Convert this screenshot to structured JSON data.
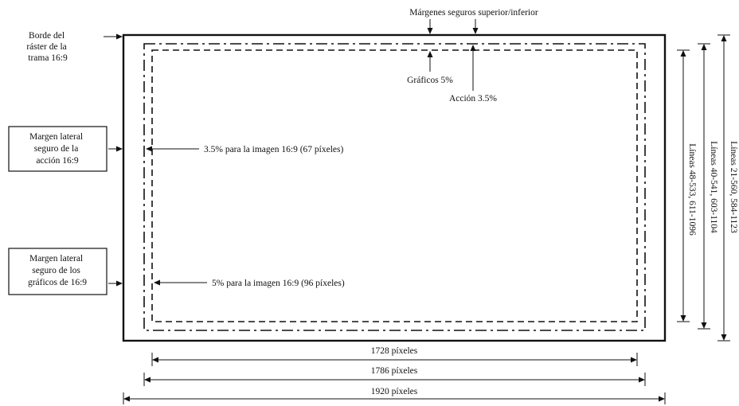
{
  "labels": {
    "top_margins": "Márgenes seguros superior/inferior",
    "raster_edge": [
      "Borde del",
      "ráster de la",
      "trama 16:9"
    ],
    "graphics": "Gráficos 5%",
    "action": "Acción 3.5%",
    "action_safe_box": [
      "Margen lateral",
      "seguro de la",
      "acción 16:9"
    ],
    "graphics_safe_box": [
      "Margen lateral",
      "seguro de los",
      "gráficos de 16:9"
    ],
    "action_pct": "3.5% para la imagen 16:9 (67 píxeles)",
    "graphics_pct": "5% para la imagen 16:9 (96 píxeles)",
    "dim_1728": "1728 píxeles",
    "dim_1786": "1786 píxeles",
    "dim_1920": "1920 píxeles",
    "lines_outer": "Líneas 21-560, 584-1123",
    "lines_action": "Líneas 40-541, 603-1104",
    "lines_graphics": "Líneas 48-533, 611-1096"
  },
  "colors": {
    "ink": "#111111",
    "background": "#ffffff"
  }
}
